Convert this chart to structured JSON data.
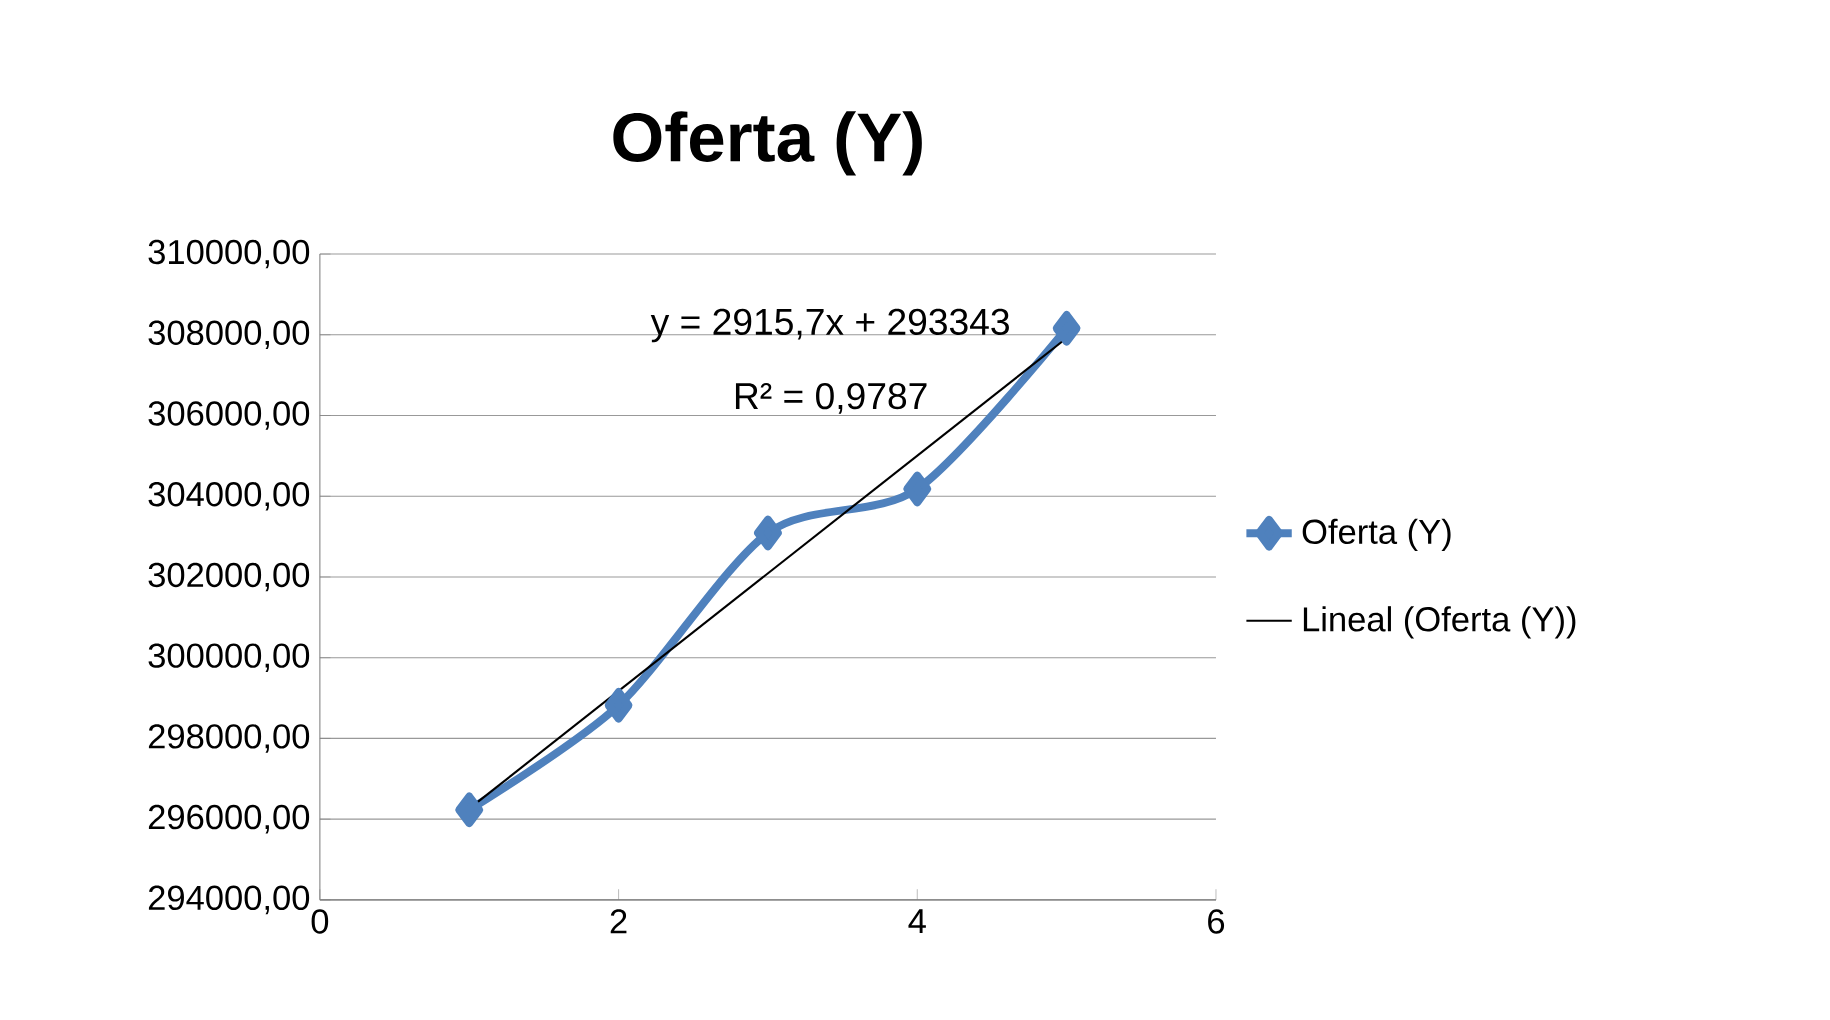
{
  "chart_data": {
    "type": "line",
    "title": "Oferta (Y)",
    "x": [
      1,
      2,
      3,
      4,
      5
    ],
    "series": [
      {
        "name": "Oferta (Y)",
        "color": "#4f81bd",
        "marker": "diamond",
        "values": [
          296230,
          298820,
          303090,
          304180,
          308160
        ]
      },
      {
        "name": "Lineal (Oferta (Y))",
        "color": "#000000",
        "marker": "none",
        "x": [
          1,
          5
        ],
        "values": [
          296260,
          307920
        ]
      }
    ],
    "xlim": [
      0,
      6
    ],
    "xticks": [
      0,
      2,
      4,
      6
    ],
    "ylim": [
      294000,
      310000
    ],
    "yticks": [
      {
        "value": 294000,
        "label": "294000,00"
      },
      {
        "value": 296000,
        "label": "296000,00"
      },
      {
        "value": 298000,
        "label": "298000,00"
      },
      {
        "value": 300000,
        "label": "300000,00"
      },
      {
        "value": 302000,
        "label": "302000,00"
      },
      {
        "value": 304000,
        "label": "304000,00"
      },
      {
        "value": 306000,
        "label": "306000,00"
      },
      {
        "value": 308000,
        "label": "308000,00"
      },
      {
        "value": 310000,
        "label": "310000,00"
      }
    ],
    "grid": "y",
    "legend": "right",
    "annotations": [
      "y = 2915,7x + 293343",
      "R² = 0,9787"
    ]
  }
}
